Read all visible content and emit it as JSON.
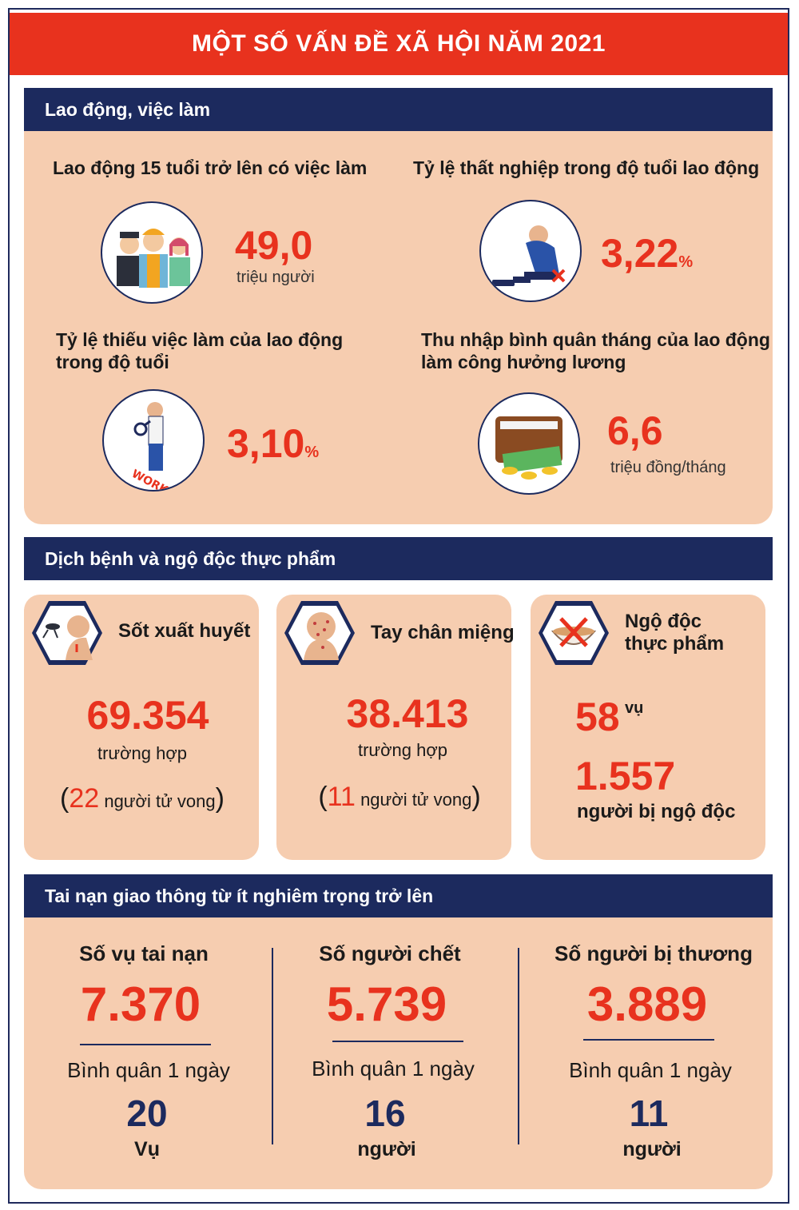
{
  "title": "MỘT SỐ VẤN ĐỀ XÃ HỘI NĂM 2021",
  "colors": {
    "accent_red": "#e8321e",
    "navy": "#1c2a5e",
    "panel_peach": "#f6cdb0"
  },
  "labor": {
    "header": "Lao động, việc làm",
    "employed": {
      "label": "Lao động 15 tuổi trở lên có việc làm",
      "value": "49,0",
      "unit": "triệu người",
      "icon": "workers-icon"
    },
    "unemployment": {
      "label": "Tỷ lệ thất nghiệp trong độ tuổi lao động",
      "value": "3,22",
      "unit": "%",
      "icon": "unemployed-man-icon"
    },
    "underemployment": {
      "label_line1": "Tỷ lệ thiếu việc làm của lao động",
      "label_line2": "trong độ tuổi",
      "value": "3,10",
      "unit": "%",
      "icon": "job-search-icon"
    },
    "income": {
      "label_line1": "Thu nhập bình quân tháng của lao động",
      "label_line2": "làm công hưởng lương",
      "value": "6,6",
      "unit": "triệu đồng/tháng",
      "icon": "wallet-icon"
    }
  },
  "disease": {
    "header": "Dịch bệnh và ngộ độc thực phẩm",
    "dengue": {
      "label": "Sốt xuất huyết",
      "value": "69.354",
      "unit": "trường hợp",
      "paren_open": "(",
      "deaths": "22",
      "deaths_text": "người tử vong",
      "paren_close": ")",
      "icon": "mosquito-icon"
    },
    "hfmd": {
      "label": "Tay chân miệng",
      "value": "38.413",
      "unit": "trường hợp",
      "paren_open": "(",
      "deaths": "11",
      "deaths_text": "người tử vong",
      "paren_close": ")",
      "icon": "rash-face-icon"
    },
    "food": {
      "label_line1": "Ngộ độc",
      "label_line2": "thực phẩm",
      "cases": "58",
      "cases_unit": "vụ",
      "people": "1.557",
      "people_text": "người bị ngộ độc",
      "icon": "food-poison-icon"
    }
  },
  "traffic": {
    "header": "Tai nạn giao thông từ ít nghiêm trọng trở lên",
    "columns": [
      {
        "head": "Số vụ tai nạn",
        "value": "7.370",
        "avg_label": "Bình quân 1 ngày",
        "avg_value": "20",
        "avg_unit": "Vụ"
      },
      {
        "head": "Số người chết",
        "value": "5.739",
        "avg_label": "Bình quân 1 ngày",
        "avg_value": "16",
        "avg_unit": "người"
      },
      {
        "head": "Số người bị thương",
        "value": "3.889",
        "avg_label": "Bình quân 1 ngày",
        "avg_value": "11",
        "avg_unit": "người"
      }
    ]
  }
}
